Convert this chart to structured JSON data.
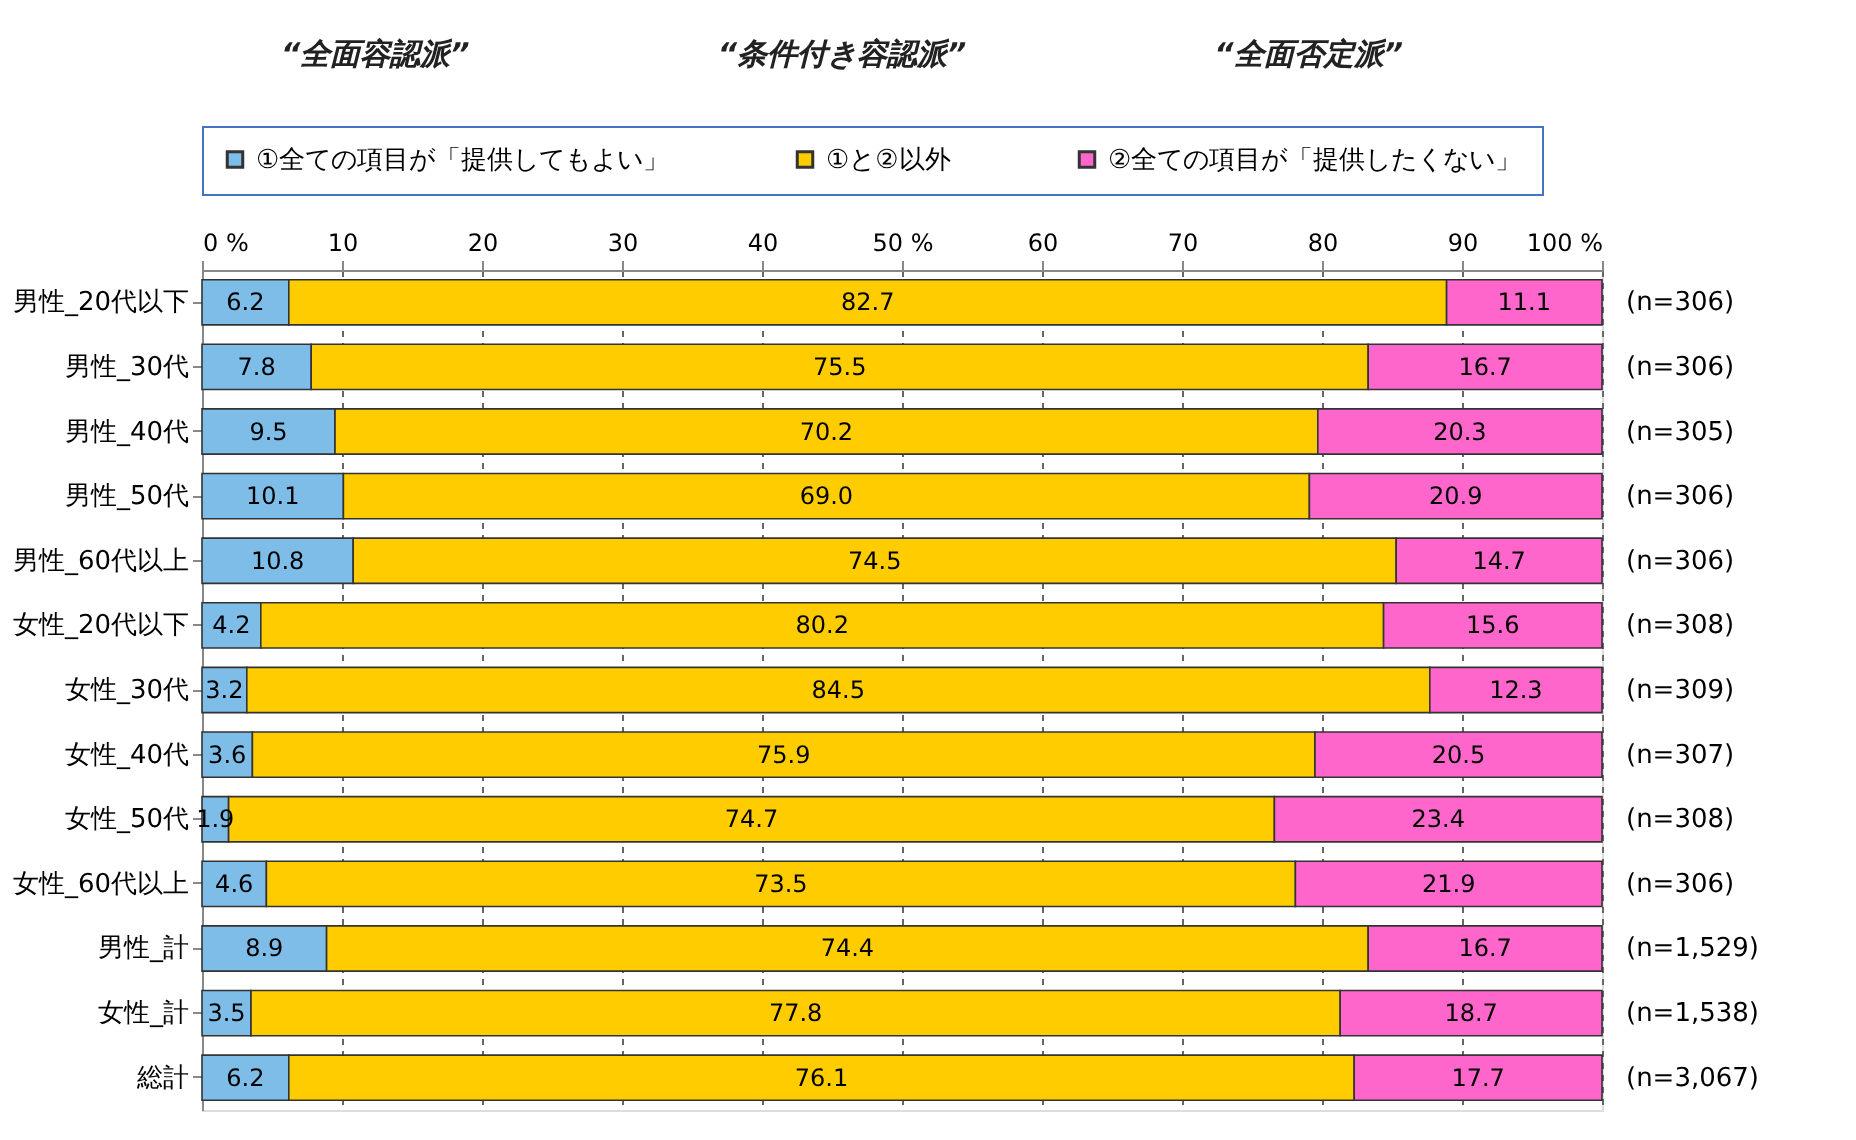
{
  "chart_data": {
    "type": "bar",
    "orientation": "horizontal",
    "stacked": true,
    "data_labels": true,
    "legend": "top",
    "grid": "x",
    "categories": [
      "男性_20代以下",
      "男性_30代",
      "男性_40代",
      "男性_50代",
      "男性_60代以上",
      "女性_20代以下",
      "女性_30代",
      "女性_40代",
      "女性_50代",
      "女性_60代以上",
      "男性_計",
      "女性_計",
      "総計"
    ],
    "series": [
      {
        "name": "①全ての項目が「提供してもよい」",
        "color": "#7dbde8",
        "values": [
          6.2,
          7.8,
          9.5,
          10.1,
          10.8,
          4.2,
          3.2,
          3.6,
          1.9,
          4.6,
          8.9,
          3.5,
          6.2
        ]
      },
      {
        "name": "①と②以外",
        "color": "#ffcc00",
        "values": [
          82.7,
          75.5,
          70.2,
          69.0,
          74.5,
          80.2,
          84.5,
          75.9,
          74.7,
          73.5,
          74.4,
          77.8,
          76.1
        ],
        "value_labels": [
          "82.7",
          "75.5",
          "70.2",
          "69.0",
          "74.5",
          "80.2",
          "84.5",
          "75.9",
          "74.7",
          "73.5",
          "74.4",
          "77.8",
          "76.1"
        ]
      },
      {
        "name": "②全ての項目が「提供したくない」",
        "color": "#ff66cc",
        "values": [
          11.1,
          16.7,
          20.3,
          20.9,
          14.7,
          15.6,
          12.3,
          20.5,
          23.4,
          21.9,
          16.7,
          18.7,
          17.7
        ]
      }
    ],
    "xlim": [
      0,
      100
    ],
    "xticks": [
      {
        "value": 0,
        "label": "0 %"
      },
      10,
      20,
      30,
      40,
      {
        "value": 50,
        "label": "50 %"
      },
      60,
      70,
      80,
      90,
      {
        "value": 100,
        "label": "100 %"
      }
    ],
    "annotations": [
      "“全面容認派”",
      "“条件付き容認派”",
      "“全面否定派”",
      "(n=306)",
      "(n=306)",
      "(n=305)",
      "(n=306)",
      "(n=306)",
      "(n=308)",
      "(n=309)",
      "(n=307)",
      "(n=308)",
      "(n=306)",
      "(n=1,529)",
      "(n=1,538)",
      "(n=3,067)"
    ]
  }
}
